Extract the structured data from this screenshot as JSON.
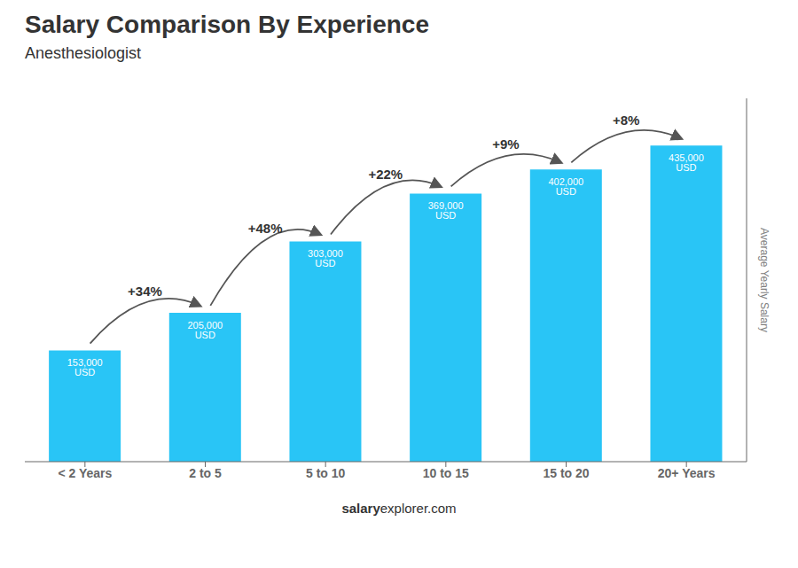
{
  "chart_data": {
    "type": "bar",
    "title": "Salary Comparison By Experience",
    "subtitle": "Anesthesiologist",
    "categories": [
      "< 2 Years",
      "2 to 5",
      "5 to 10",
      "10 to 15",
      "15 to 20",
      "20+ Years"
    ],
    "values": [
      153000,
      205000,
      303000,
      369000,
      402000,
      435000
    ],
    "value_labels": [
      "153,000 USD",
      "205,000 USD",
      "303,000 USD",
      "369,000 USD",
      "402,000 USD",
      "435,000 USD"
    ],
    "data_labels": true,
    "annotations": [
      "+34%",
      "+48%",
      "+22%",
      "+9%",
      "+8%"
    ],
    "ylabel": "Average Yearly Salary",
    "footer": [
      "salary",
      "explorer.com"
    ],
    "color": "#29C5F6",
    "ylim": [
      0,
      500000
    ],
    "tick_labels": "x",
    "grid": false
  }
}
